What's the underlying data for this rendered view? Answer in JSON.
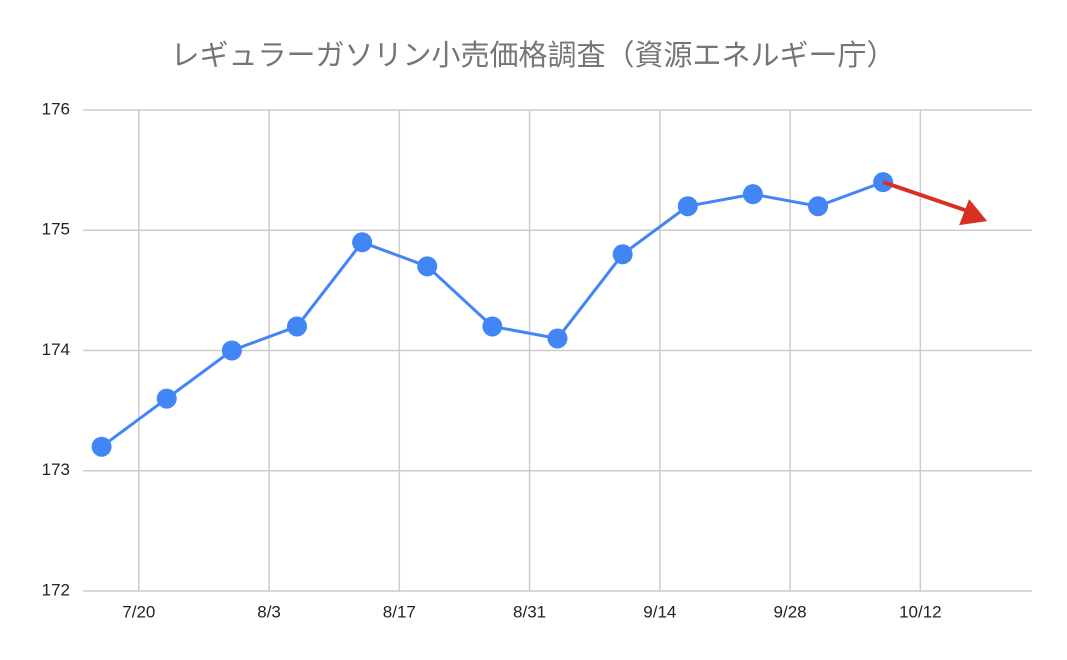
{
  "chart_data": {
    "type": "line",
    "title": "レギュラーガソリン小売価格調査（資源エネルギー庁）",
    "x": [
      "7/16",
      "7/23",
      "7/30",
      "8/6",
      "8/13",
      "8/20",
      "8/27",
      "9/3",
      "9/10",
      "9/17",
      "9/24",
      "10/1",
      "10/8"
    ],
    "series": [
      {
        "color": "#4285f4",
        "values": [
          173.2,
          173.6,
          174.0,
          174.2,
          174.9,
          174.7,
          174.2,
          174.1,
          174.8,
          175.2,
          175.3,
          175.2,
          175.4
        ]
      }
    ],
    "xlim": [
      "7/14",
      "10/24"
    ],
    "xticks": [
      "7/20",
      "8/3",
      "8/17",
      "8/31",
      "9/14",
      "9/28",
      "10/12"
    ],
    "ylim": [
      172,
      176
    ],
    "yticks": [
      172,
      173,
      174,
      175,
      176
    ],
    "grid": true
  }
}
